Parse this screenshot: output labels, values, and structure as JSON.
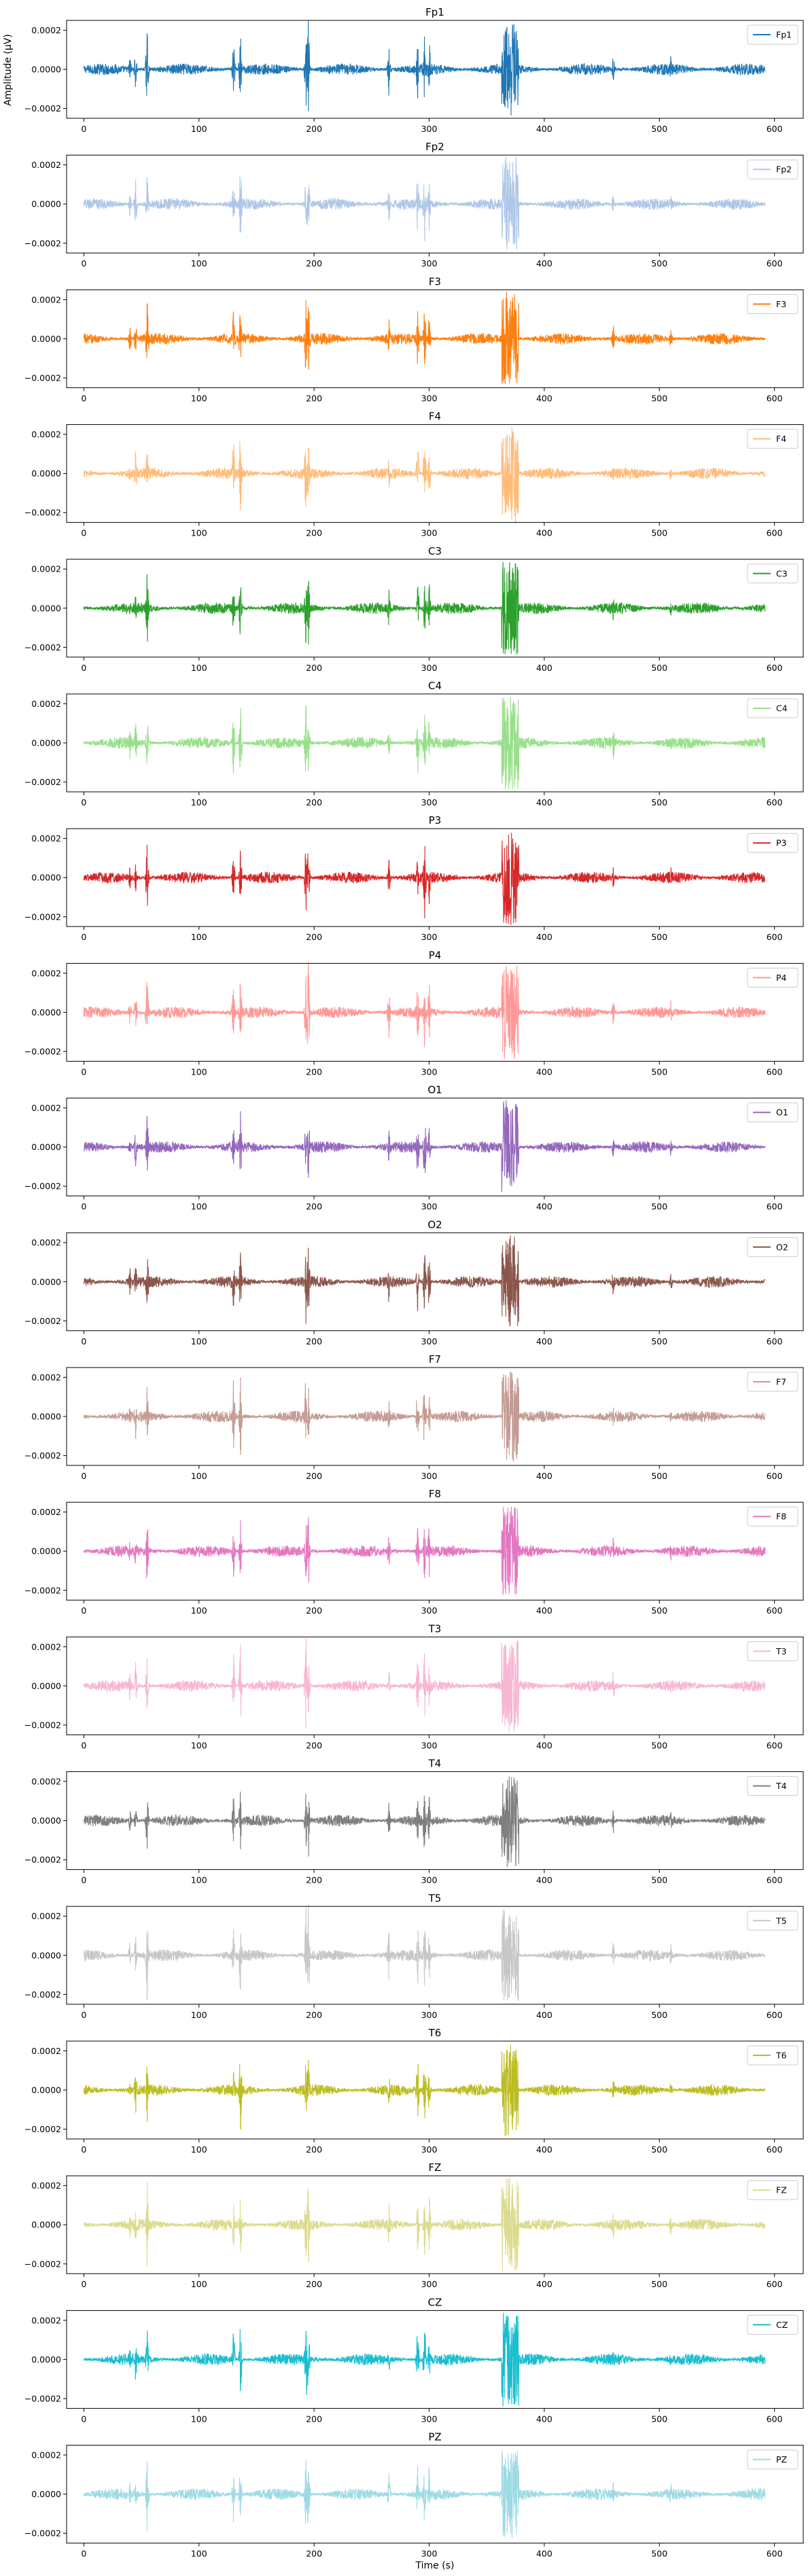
{
  "figure": {
    "ylabel": "Amplitude (µV)",
    "xlabel": "Time (s)"
  },
  "chart_data": {
    "type": "line",
    "grid": false,
    "legend_placement": "upper right",
    "xlim": [
      -15,
      625
    ],
    "ylim": [
      -0.00025,
      0.00025
    ],
    "x_ticks": [
      0,
      100,
      200,
      300,
      400,
      500,
      600
    ],
    "y_ticks": [
      0.0002,
      0.0,
      -0.0002
    ],
    "y_tick_labels": [
      "0.0002",
      "0.0000",
      "−0.0002"
    ],
    "x_range": [
      0,
      592
    ],
    "panels": [
      {
        "title": "Fp1",
        "series": [
          {
            "name": "Fp1",
            "color": "#1f77b4"
          }
        ]
      },
      {
        "title": "Fp2",
        "series": [
          {
            "name": "Fp2",
            "color": "#aec7e8"
          }
        ]
      },
      {
        "title": "F3",
        "series": [
          {
            "name": "F3",
            "color": "#ff7f0e"
          }
        ]
      },
      {
        "title": "F4",
        "series": [
          {
            "name": "F4",
            "color": "#ffbb78"
          }
        ]
      },
      {
        "title": "C3",
        "series": [
          {
            "name": "C3",
            "color": "#2ca02c"
          }
        ]
      },
      {
        "title": "C4",
        "series": [
          {
            "name": "C4",
            "color": "#98df8a"
          }
        ]
      },
      {
        "title": "P3",
        "series": [
          {
            "name": "P3",
            "color": "#d62728"
          }
        ]
      },
      {
        "title": "P4",
        "series": [
          {
            "name": "P4",
            "color": "#ff9896"
          }
        ]
      },
      {
        "title": "O1",
        "series": [
          {
            "name": "O1",
            "color": "#9467bd"
          }
        ]
      },
      {
        "title": "O2",
        "series": [
          {
            "name": "O2",
            "color": "#8c564b"
          }
        ]
      },
      {
        "title": "F7",
        "series": [
          {
            "name": "F7",
            "color": "#c49c94"
          }
        ]
      },
      {
        "title": "F8",
        "series": [
          {
            "name": "F8",
            "color": "#e377c2"
          }
        ]
      },
      {
        "title": "T3",
        "series": [
          {
            "name": "T3",
            "color": "#f7b6d2"
          }
        ]
      },
      {
        "title": "T4",
        "series": [
          {
            "name": "T4",
            "color": "#7f7f7f"
          }
        ]
      },
      {
        "title": "T5",
        "series": [
          {
            "name": "T5",
            "color": "#c7c7c7"
          }
        ]
      },
      {
        "title": "T6",
        "series": [
          {
            "name": "T6",
            "color": "#bcbd22"
          }
        ]
      },
      {
        "title": "FZ",
        "series": [
          {
            "name": "FZ",
            "color": "#dbdb8d"
          }
        ]
      },
      {
        "title": "CZ",
        "series": [
          {
            "name": "CZ",
            "color": "#17becf"
          }
        ]
      },
      {
        "title": "PZ",
        "series": [
          {
            "name": "PZ",
            "color": "#9edae5"
          }
        ]
      }
    ],
    "signal": {
      "baseline_amplitude": 3e-05,
      "bursts": [
        {
          "t": 40,
          "amplitude": 8e-05
        },
        {
          "t": 45,
          "amplitude": 0.00012
        },
        {
          "t": 55,
          "amplitude": 0.00021
        },
        {
          "t": 130,
          "amplitude": 0.00017
        },
        {
          "t": 136,
          "amplitude": 0.00022
        },
        {
          "t": 193,
          "amplitude": 0.00025
        },
        {
          "t": 195,
          "amplitude": 0.00025
        },
        {
          "t": 265,
          "amplitude": 0.00012
        },
        {
          "t": 290,
          "amplitude": 0.00018
        },
        {
          "t": 296,
          "amplitude": 0.00022
        },
        {
          "t": 300,
          "amplitude": 0.00016
        },
        {
          "t": 367,
          "amplitude": 0.00025
        },
        {
          "t": 371,
          "amplitude": 0.00025
        },
        {
          "t": 375,
          "amplitude": 0.00025
        },
        {
          "t": 460,
          "amplitude": 8e-05
        },
        {
          "t": 510,
          "amplitude": 6e-05
        }
      ]
    }
  }
}
